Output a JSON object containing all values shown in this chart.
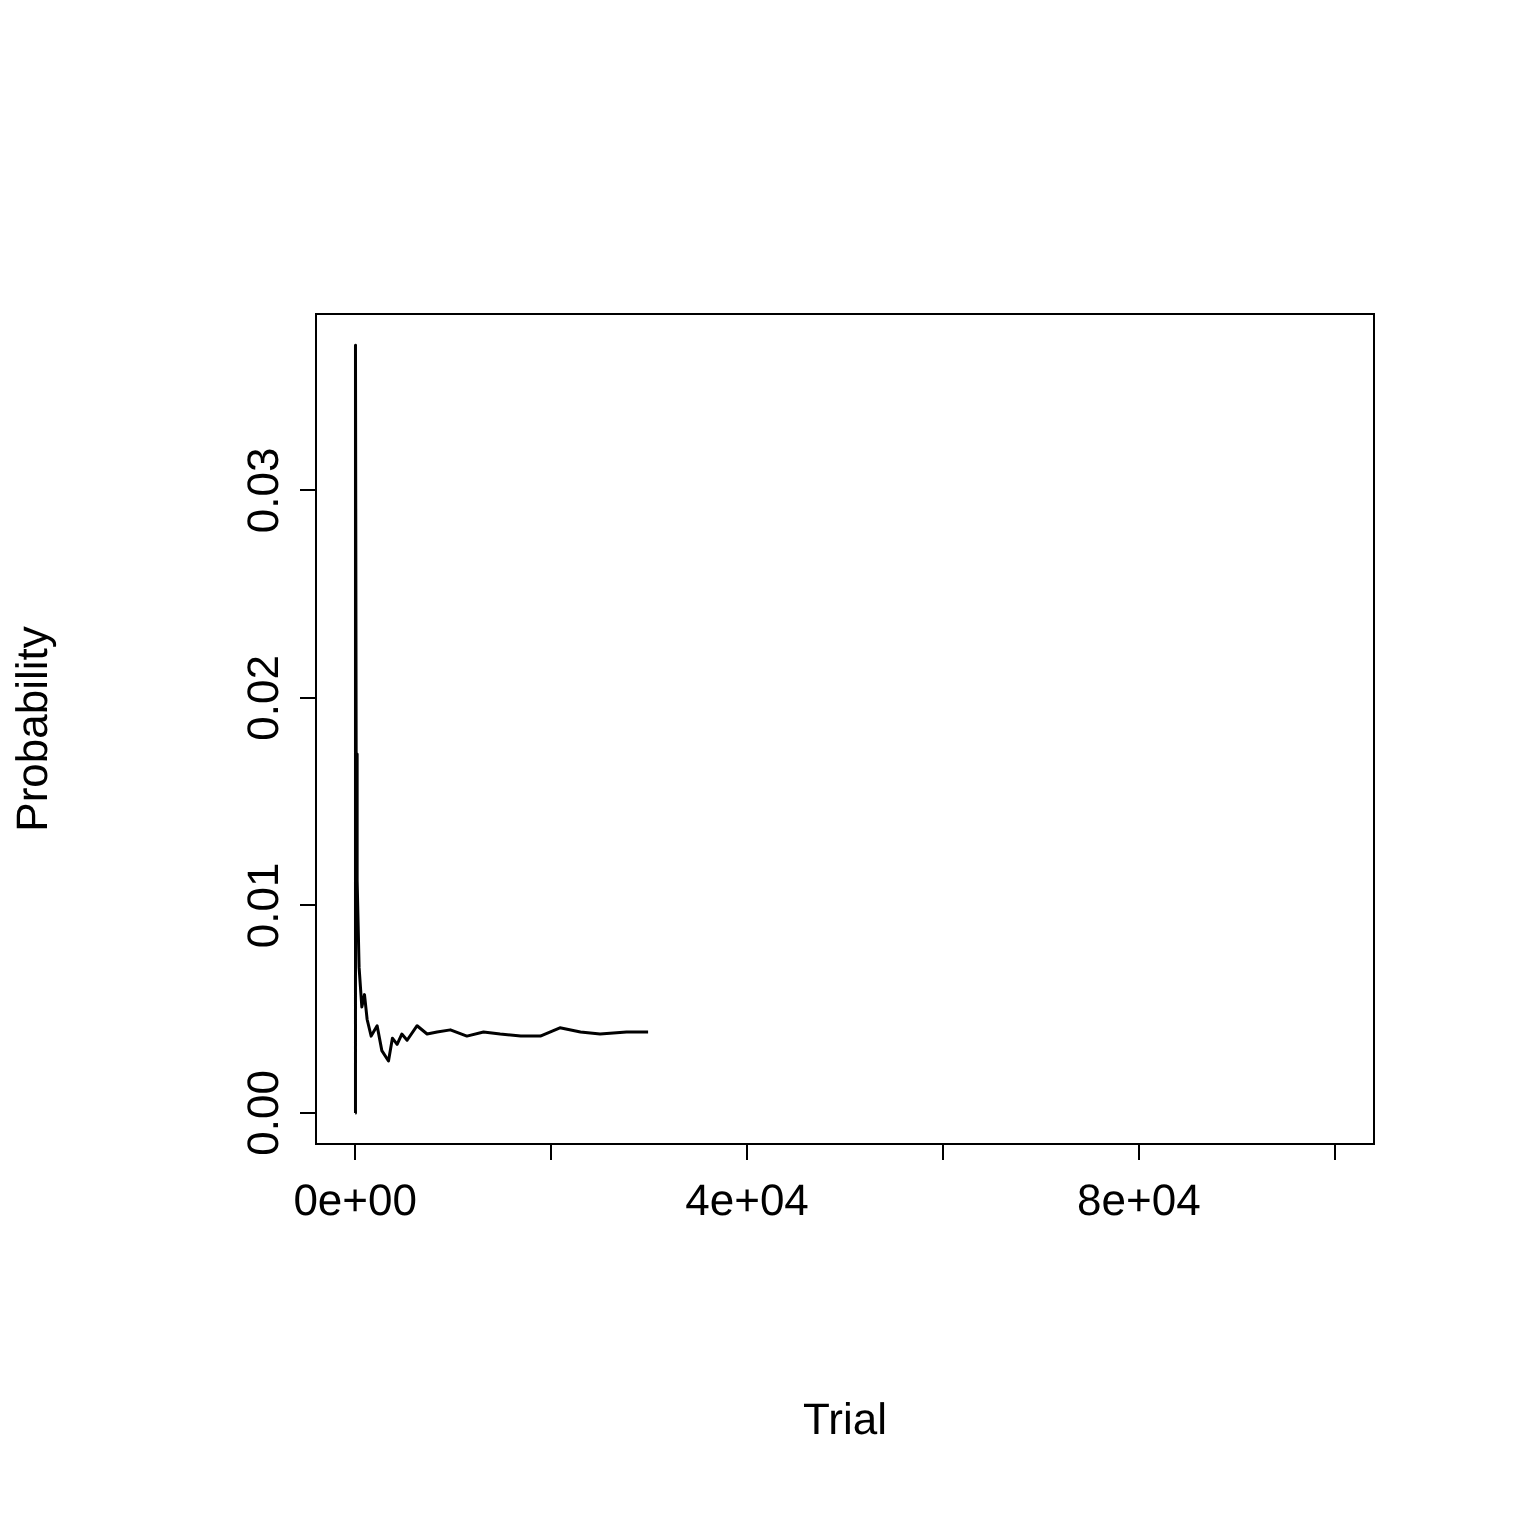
{
  "chart_data": {
    "type": "line",
    "xlabel": "Trial",
    "ylabel": "Probability",
    "xlim": [
      -4000,
      104000
    ],
    "xticks": [
      {
        "value": 0,
        "label": "0e+00"
      },
      {
        "value": 20000,
        "label": null
      },
      {
        "value": 40000,
        "label": "4e+04"
      },
      {
        "value": 60000,
        "label": null
      },
      {
        "value": 80000,
        "label": "8e+04"
      },
      {
        "value": 100000,
        "label": null
      }
    ],
    "ylim": [
      -0.0015,
      0.0385
    ],
    "yticks": [
      {
        "value": 0,
        "label": "0.00"
      },
      0.01,
      0.02,
      0.03
    ],
    "grid": false,
    "legend": false,
    "marker": "none",
    "line_style": "solid",
    "series": [
      {
        "color": "#000000",
        "x": [
          1,
          30,
          100,
          200,
          400,
          680,
          950,
          1220,
          1630,
          2240,
          2720,
          3400,
          3800,
          4280,
          4760,
          5300,
          6320,
          7340,
          8360,
          9720,
          11400,
          13100,
          14800,
          16900,
          18900,
          20900,
          23000,
          25000,
          27700,
          29900
        ],
        "values": [
          0,
          0.037,
          0.0173,
          0.0112,
          0.007,
          0.0051,
          0.0057,
          0.0045,
          0.0037,
          0.0042,
          0.003,
          0.0025,
          0.0036,
          0.0033,
          0.0038,
          0.0035,
          0.0042,
          0.0038,
          0.0039,
          0.004,
          0.0037,
          0.0039,
          0.0038,
          0.0037,
          0.0037,
          0.0041,
          0.0039,
          0.0038,
          0.0039,
          0.0039
        ]
      }
    ]
  }
}
